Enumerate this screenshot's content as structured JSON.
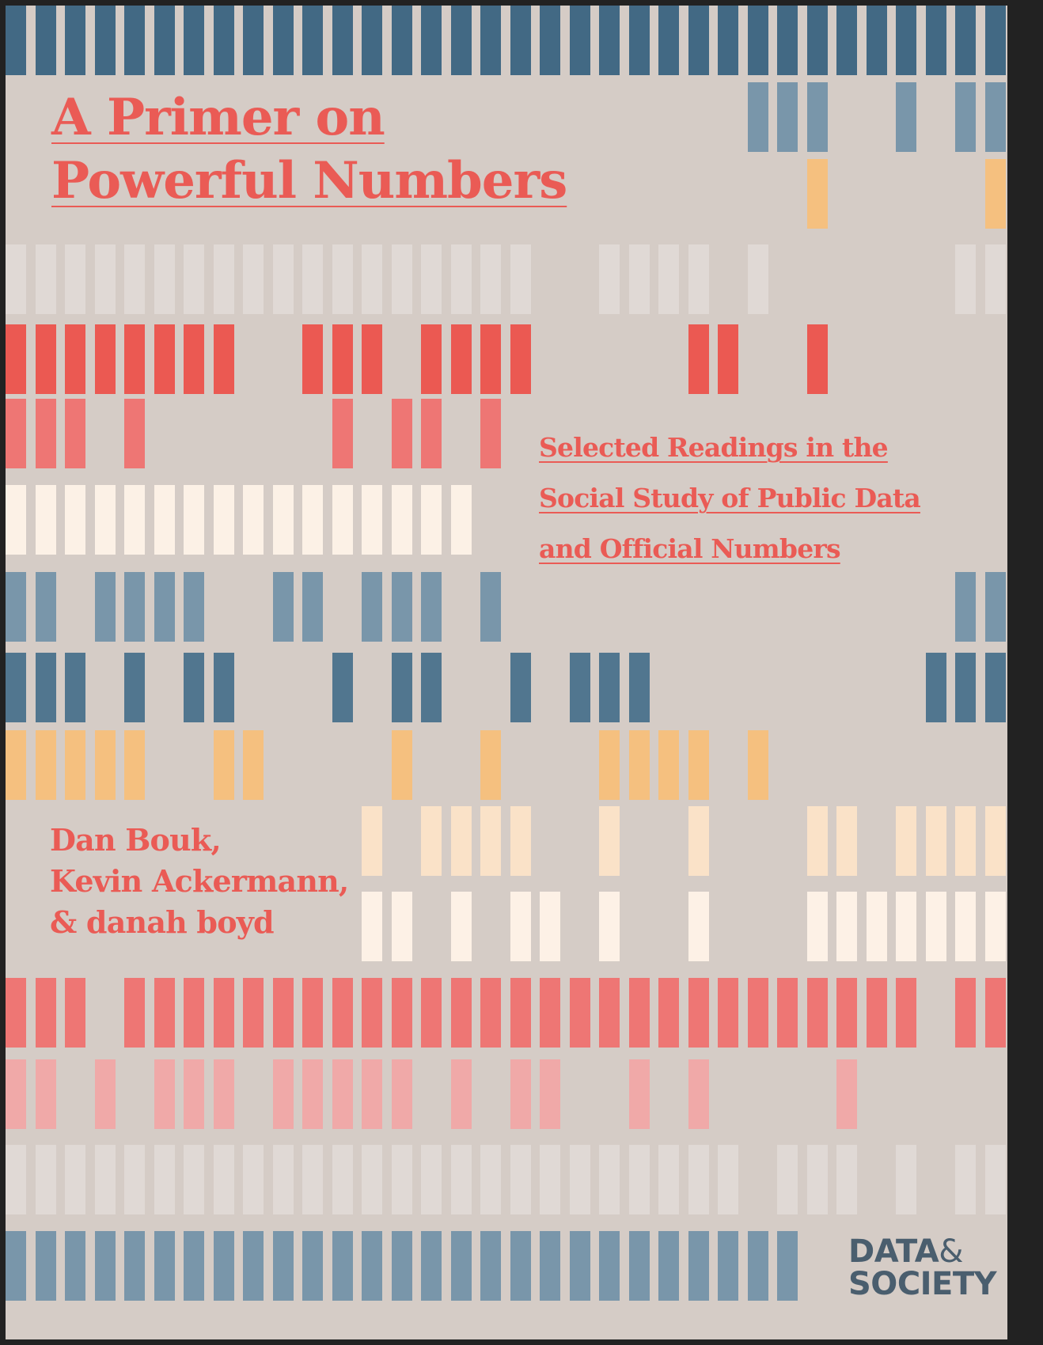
{
  "cover": {
    "title_line1": "A Primer on",
    "title_line2": "Powerful Numbers",
    "subtitle_line1": "Selected Readings in the",
    "subtitle_line2": "Social Study of Public Data",
    "subtitle_line3": "and Official Numbers",
    "authors": [
      "Dan Bouk,",
      "Kevin Ackermann,",
      "& danah boyd"
    ],
    "logo_line1": "DATA",
    "logo_amp": "&",
    "logo_line2": "SOCIETY"
  },
  "colors": {
    "background": "#d5ccc6",
    "accent": "#ea5b55",
    "logo": "#4a5e6e"
  },
  "bar_pattern": {
    "columns": 34,
    "rows": [
      {
        "color": "#426984",
        "on": "1111111111111111111111111111111111"
      },
      {
        "color": "#7996aa",
        "on": "0000000000000000000000000111001011"
      },
      {
        "color": "#f5c07f",
        "on": "0000000000000000000000000001000001"
      },
      {
        "color": "#e0d9d5",
        "on": "1111111111111111110011110100000011"
      },
      {
        "color": "#eb5952",
        "on": "1111111100111011110000011001000000"
      },
      {
        "color": "#ee7674",
        "on": "1110100000010110100000000000000000"
      },
      {
        "color": "#fcf1e6",
        "on": "1111111111111111000000000000000000"
      },
      {
        "color": "#7996aa",
        "on": "1101111001101110100000000000000011"
      },
      {
        "color": "#51768f",
        "on": "1110101100010110010111000000000111"
      },
      {
        "color": "#f5c07f",
        "on": "1111100110000100100011110100000000"
      },
      {
        "color": "#fae2c8",
        "on": "0000000000001011110010010001101111"
      },
      {
        "color": "#fdf1e6",
        "on": "0000000000001101011010010001111111"
      },
      {
        "color": "#ee7674",
        "on": "1110111111111111111111111111111011"
      },
      {
        "color": "#f0a9a8",
        "on": "1101011101111101011001010000100000"
      },
      {
        "color": "#e0d9d5",
        "on": "1111111111111111111111111011101011"
      },
      {
        "color": "#7996aa",
        "on": "1111111111111111111111111110000000"
      }
    ]
  }
}
